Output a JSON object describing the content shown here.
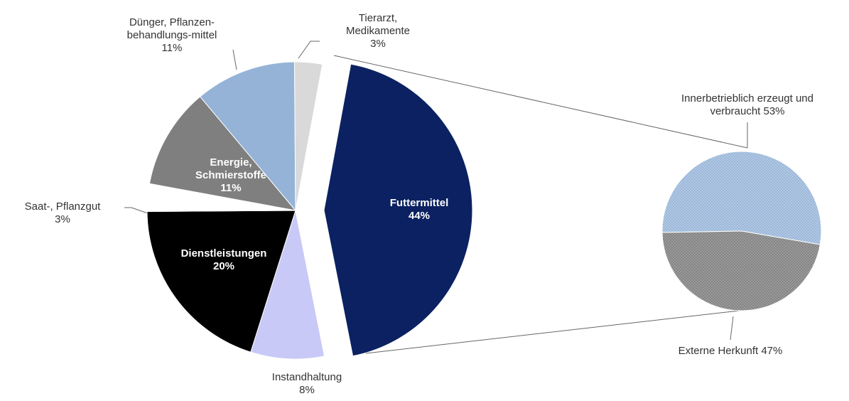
{
  "chart_data": {
    "type": "pie-of-pie",
    "categories": [
      "Futtermittel",
      "Instandhaltung",
      "Dienstleistungen",
      "Saat-, Pflanzgut",
      "Energie, Schmierstoffe",
      "Dünger, Pflanzen-behandlungs-mittel",
      "Tierarzt, Medikamente"
    ],
    "values": [
      44,
      8,
      20,
      3,
      11,
      11,
      3
    ],
    "value_labels": [
      "44%",
      "8%",
      "20%",
      "3%",
      "11%",
      "11%",
      "3%"
    ],
    "colors": [
      "#0b2161",
      "#c9c9f7",
      "#000000",
      "#ffffff",
      "#7f7f7f",
      "#95b3d7",
      "#d9d9d9"
    ],
    "secondary": {
      "categories": [
        "Innerbetrieblich erzeugt und verbraucht",
        "Externe Herkunft"
      ],
      "values": [
        53,
        47
      ],
      "value_labels": [
        "53%",
        "47%"
      ],
      "colors": [
        "#95b3d7",
        "#7f7f7f"
      ]
    }
  }
}
